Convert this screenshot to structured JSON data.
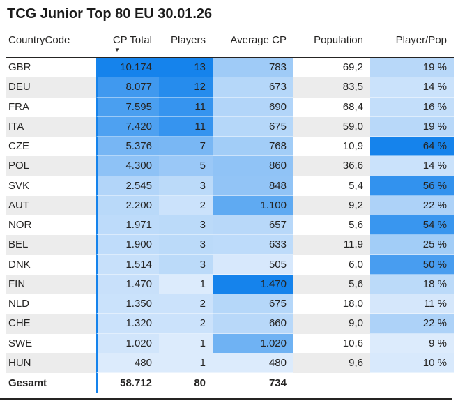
{
  "header": {
    "title": "TCG Junior Top 80 EU 30.01.26"
  },
  "icons": {
    "sort_desc": "▼"
  },
  "style": {
    "heatmap_min_color": "#DCEBFC",
    "heatmap_max_color": "#1583EC",
    "zebra_color": "#ECECEC",
    "row_white": "#FFFFFF",
    "text_color": "#252423",
    "separator_blue": "#1583EC",
    "line_color": "#252423"
  },
  "chart_data": {
    "type": "table",
    "title": "TCG Junior Top 80 EU 30.01.26",
    "columns": [
      {
        "key": "country",
        "label": "CountryCode",
        "align": "left",
        "heatmap": false,
        "sort": null
      },
      {
        "key": "cp_total",
        "label": "CP Total",
        "align": "right",
        "heatmap": true,
        "sort": "desc"
      },
      {
        "key": "players",
        "label": "Players",
        "align": "right",
        "heatmap": true,
        "sort": null
      },
      {
        "key": "avg_cp",
        "label": "Average CP",
        "align": "right",
        "heatmap": true,
        "sort": null
      },
      {
        "key": "population",
        "label": "Population",
        "align": "right",
        "heatmap": false,
        "sort": null
      },
      {
        "key": "player_pop",
        "label": "Player/Pop",
        "align": "right",
        "heatmap": true,
        "sort": null
      }
    ],
    "rows": [
      {
        "country": {
          "t": "GBR"
        },
        "cp_total": {
          "v": 10174,
          "t": "10.174"
        },
        "players": {
          "v": 13,
          "t": "13"
        },
        "avg_cp": {
          "v": 783,
          "t": "783"
        },
        "population": {
          "t": "69,2"
        },
        "player_pop": {
          "v": 19,
          "t": "19 %"
        }
      },
      {
        "country": {
          "t": "DEU"
        },
        "cp_total": {
          "v": 8077,
          "t": "8.077"
        },
        "players": {
          "v": 12,
          "t": "12"
        },
        "avg_cp": {
          "v": 673,
          "t": "673"
        },
        "population": {
          "t": "83,5"
        },
        "player_pop": {
          "v": 14,
          "t": "14 %"
        }
      },
      {
        "country": {
          "t": "FRA"
        },
        "cp_total": {
          "v": 7595,
          "t": "7.595"
        },
        "players": {
          "v": 11,
          "t": "11"
        },
        "avg_cp": {
          "v": 690,
          "t": "690"
        },
        "population": {
          "t": "68,4"
        },
        "player_pop": {
          "v": 16,
          "t": "16 %"
        }
      },
      {
        "country": {
          "t": "ITA"
        },
        "cp_total": {
          "v": 7420,
          "t": "7.420"
        },
        "players": {
          "v": 11,
          "t": "11"
        },
        "avg_cp": {
          "v": 675,
          "t": "675"
        },
        "population": {
          "t": "59,0"
        },
        "player_pop": {
          "v": 19,
          "t": "19 %"
        }
      },
      {
        "country": {
          "t": "CZE"
        },
        "cp_total": {
          "v": 5376,
          "t": "5.376"
        },
        "players": {
          "v": 7,
          "t": "7"
        },
        "avg_cp": {
          "v": 768,
          "t": "768"
        },
        "population": {
          "t": "10,9"
        },
        "player_pop": {
          "v": 64,
          "t": "64 %"
        }
      },
      {
        "country": {
          "t": "POL"
        },
        "cp_total": {
          "v": 4300,
          "t": "4.300"
        },
        "players": {
          "v": 5,
          "t": "5"
        },
        "avg_cp": {
          "v": 860,
          "t": "860"
        },
        "population": {
          "t": "36,6"
        },
        "player_pop": {
          "v": 14,
          "t": "14 %"
        }
      },
      {
        "country": {
          "t": "SVK"
        },
        "cp_total": {
          "v": 2545,
          "t": "2.545"
        },
        "players": {
          "v": 3,
          "t": "3"
        },
        "avg_cp": {
          "v": 848,
          "t": "848"
        },
        "population": {
          "t": "5,4"
        },
        "player_pop": {
          "v": 56,
          "t": "56 %"
        }
      },
      {
        "country": {
          "t": "AUT"
        },
        "cp_total": {
          "v": 2200,
          "t": "2.200"
        },
        "players": {
          "v": 2,
          "t": "2"
        },
        "avg_cp": {
          "v": 1100,
          "t": "1.100"
        },
        "population": {
          "t": "9,2"
        },
        "player_pop": {
          "v": 22,
          "t": "22 %"
        }
      },
      {
        "country": {
          "t": "NOR"
        },
        "cp_total": {
          "v": 1971,
          "t": "1.971"
        },
        "players": {
          "v": 3,
          "t": "3"
        },
        "avg_cp": {
          "v": 657,
          "t": "657"
        },
        "population": {
          "t": "5,6"
        },
        "player_pop": {
          "v": 54,
          "t": "54 %"
        }
      },
      {
        "country": {
          "t": "BEL"
        },
        "cp_total": {
          "v": 1900,
          "t": "1.900"
        },
        "players": {
          "v": 3,
          "t": "3"
        },
        "avg_cp": {
          "v": 633,
          "t": "633"
        },
        "population": {
          "t": "11,9"
        },
        "player_pop": {
          "v": 25,
          "t": "25 %"
        }
      },
      {
        "country": {
          "t": "DNK"
        },
        "cp_total": {
          "v": 1514,
          "t": "1.514"
        },
        "players": {
          "v": 3,
          "t": "3"
        },
        "avg_cp": {
          "v": 505,
          "t": "505"
        },
        "population": {
          "t": "6,0"
        },
        "player_pop": {
          "v": 50,
          "t": "50 %"
        }
      },
      {
        "country": {
          "t": "FIN"
        },
        "cp_total": {
          "v": 1470,
          "t": "1.470"
        },
        "players": {
          "v": 1,
          "t": "1"
        },
        "avg_cp": {
          "v": 1470,
          "t": "1.470"
        },
        "population": {
          "t": "5,6"
        },
        "player_pop": {
          "v": 18,
          "t": "18 %"
        }
      },
      {
        "country": {
          "t": "NLD"
        },
        "cp_total": {
          "v": 1350,
          "t": "1.350"
        },
        "players": {
          "v": 2,
          "t": "2"
        },
        "avg_cp": {
          "v": 675,
          "t": "675"
        },
        "population": {
          "t": "18,0"
        },
        "player_pop": {
          "v": 11,
          "t": "11 %"
        }
      },
      {
        "country": {
          "t": "CHE"
        },
        "cp_total": {
          "v": 1320,
          "t": "1.320"
        },
        "players": {
          "v": 2,
          "t": "2"
        },
        "avg_cp": {
          "v": 660,
          "t": "660"
        },
        "population": {
          "t": "9,0"
        },
        "player_pop": {
          "v": 22,
          "t": "22 %"
        }
      },
      {
        "country": {
          "t": "SWE"
        },
        "cp_total": {
          "v": 1020,
          "t": "1.020"
        },
        "players": {
          "v": 1,
          "t": "1"
        },
        "avg_cp": {
          "v": 1020,
          "t": "1.020"
        },
        "population": {
          "t": "10,6"
        },
        "player_pop": {
          "v": 9,
          "t": "9 %"
        }
      },
      {
        "country": {
          "t": "HUN"
        },
        "cp_total": {
          "v": 480,
          "t": "480"
        },
        "players": {
          "v": 1,
          "t": "1"
        },
        "avg_cp": {
          "v": 480,
          "t": "480"
        },
        "population": {
          "t": "9,6"
        },
        "player_pop": {
          "v": 10,
          "t": "10 %"
        }
      }
    ],
    "total": {
      "country": {
        "t": "Gesamt"
      },
      "cp_total": {
        "t": "58.712"
      },
      "players": {
        "t": "80"
      },
      "avg_cp": {
        "t": "734"
      },
      "population": {
        "t": ""
      },
      "player_pop": {
        "t": ""
      }
    }
  }
}
